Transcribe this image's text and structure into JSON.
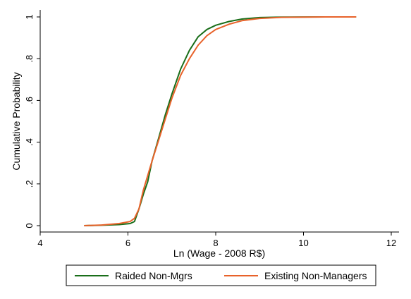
{
  "chart_data": {
    "type": "line",
    "title": "",
    "xlabel": "Ln (Wage - 2008 R$)",
    "ylabel": "Cumulative Probability",
    "xlim": [
      4,
      12
    ],
    "ylim": [
      0,
      1
    ],
    "x_ticks": [
      4,
      6,
      8,
      10,
      12
    ],
    "x_tick_labels": [
      "4",
      "6",
      "8",
      "10",
      "12"
    ],
    "y_ticks": [
      0,
      0.2,
      0.4,
      0.6,
      0.8,
      1
    ],
    "y_tick_labels": [
      "0",
      ".2",
      ".4",
      ".6",
      ".8",
      "1"
    ],
    "grid": false,
    "legend_position": "bottom",
    "series": [
      {
        "name": "Raided Non-Mgrs",
        "color": "#1a6e1a",
        "x": [
          5.0,
          5.4,
          5.8,
          6.05,
          6.15,
          6.25,
          6.35,
          6.45,
          6.55,
          6.7,
          6.85,
          7.0,
          7.2,
          7.4,
          7.6,
          7.8,
          8.0,
          8.3,
          8.6,
          9.0,
          9.5,
          10.5,
          11.2
        ],
        "y": [
          0.0,
          0.002,
          0.005,
          0.01,
          0.02,
          0.08,
          0.15,
          0.21,
          0.31,
          0.42,
          0.53,
          0.63,
          0.75,
          0.84,
          0.905,
          0.94,
          0.96,
          0.978,
          0.99,
          0.997,
          0.999,
          1.0,
          1.0
        ]
      },
      {
        "name": "Existing Non-Managers",
        "color": "#e8622a",
        "x": [
          5.0,
          5.4,
          5.8,
          6.05,
          6.15,
          6.25,
          6.35,
          6.45,
          6.55,
          6.7,
          6.85,
          7.0,
          7.2,
          7.4,
          7.6,
          7.8,
          8.0,
          8.3,
          8.6,
          9.0,
          9.5,
          10.5,
          11.2
        ],
        "y": [
          0.0,
          0.003,
          0.01,
          0.02,
          0.035,
          0.08,
          0.17,
          0.24,
          0.31,
          0.41,
          0.51,
          0.61,
          0.72,
          0.8,
          0.865,
          0.91,
          0.94,
          0.965,
          0.982,
          0.993,
          0.998,
          1.0,
          1.0
        ]
      }
    ]
  }
}
